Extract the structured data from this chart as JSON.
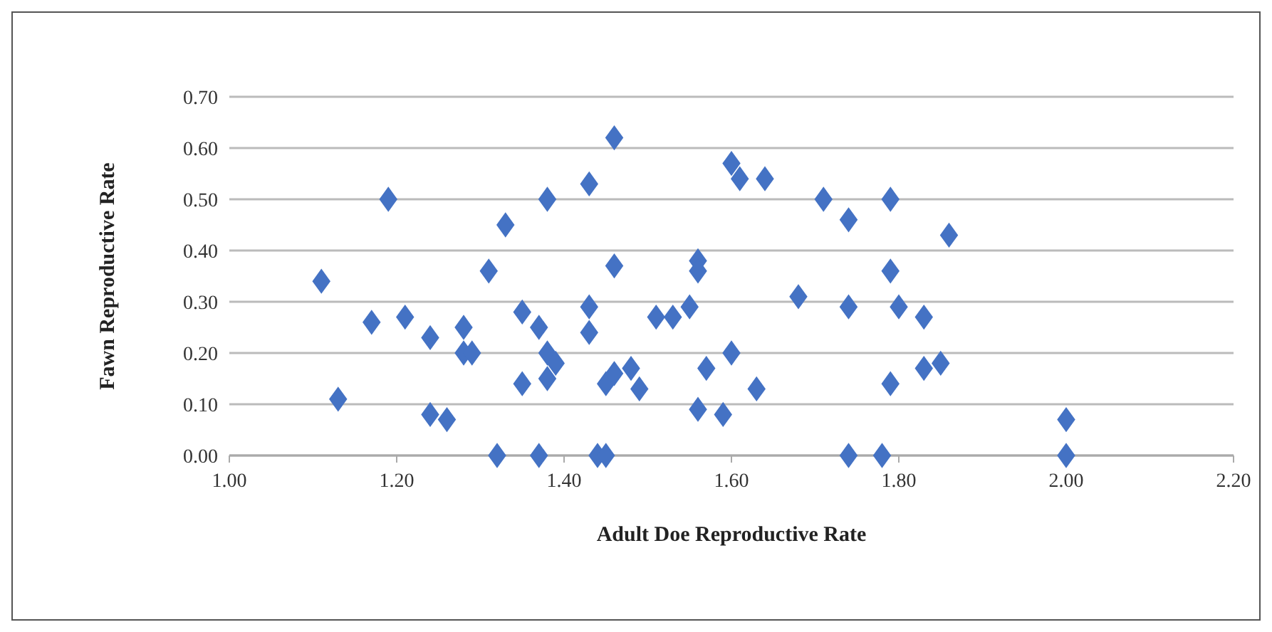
{
  "chart_data": {
    "type": "scatter",
    "xlabel": "Adult Doe Reproductive Rate",
    "ylabel": "Fawn Reproductive Rate",
    "xlim": [
      1.0,
      2.2
    ],
    "xticks": [
      {
        "value": 1.0,
        "label": "1.00"
      },
      {
        "value": 1.2,
        "label": "1.20"
      },
      {
        "value": 1.4,
        "label": "1.40"
      },
      {
        "value": 1.6,
        "label": "1.60"
      },
      {
        "value": 1.8,
        "label": "1.80"
      },
      {
        "value": 2.0,
        "label": "2.00"
      },
      {
        "value": 2.2,
        "label": "2.20"
      }
    ],
    "ylim": [
      0,
      0.7
    ],
    "yticks": [
      {
        "value": 0,
        "label": "0.00"
      },
      {
        "value": 0.1,
        "label": "0.10"
      },
      {
        "value": 0.2,
        "label": "0.20"
      },
      {
        "value": 0.3,
        "label": "0.30"
      },
      {
        "value": 0.4,
        "label": "0.40"
      },
      {
        "value": 0.5,
        "label": "0.50"
      },
      {
        "value": 0.6,
        "label": "0.60"
      },
      {
        "value": 0.7,
        "label": "0.70"
      }
    ],
    "grid": "y",
    "marker": "diamond",
    "series": [
      {
        "color": "#4472c4",
        "x": [
          1.11,
          1.13,
          1.19,
          1.17,
          1.21,
          1.24,
          1.24,
          1.26,
          1.28,
          1.28,
          1.29,
          1.31,
          1.32,
          1.33,
          1.35,
          1.35,
          1.37,
          1.37,
          1.38,
          1.38,
          1.38,
          1.39,
          1.43,
          1.43,
          1.43,
          1.44,
          1.45,
          1.46,
          1.45,
          1.46,
          1.48,
          1.49,
          1.46,
          1.51,
          1.53,
          1.55,
          1.56,
          1.56,
          1.56,
          1.57,
          1.59,
          1.6,
          1.6,
          1.61,
          1.64,
          1.63,
          1.68,
          1.71,
          1.74,
          1.74,
          1.74,
          1.78,
          1.79,
          1.79,
          1.79,
          1.8,
          1.83,
          1.83,
          1.85,
          1.86,
          2.0,
          2.0
        ],
        "values": [
          0.34,
          0.11,
          0.5,
          0.26,
          0.27,
          0.23,
          0.08,
          0.07,
          0.25,
          0.2,
          0.2,
          0.36,
          0.0,
          0.45,
          0.28,
          0.14,
          0.0,
          0.25,
          0.2,
          0.15,
          0.5,
          0.18,
          0.53,
          0.29,
          0.24,
          0.0,
          0.0,
          0.62,
          0.14,
          0.16,
          0.17,
          0.13,
          0.37,
          0.27,
          0.27,
          0.29,
          0.38,
          0.36,
          0.09,
          0.17,
          0.08,
          0.2,
          0.57,
          0.54,
          0.54,
          0.13,
          0.31,
          0.5,
          0.46,
          0.29,
          0.0,
          0.0,
          0.5,
          0.36,
          0.14,
          0.29,
          0.27,
          0.17,
          0.18,
          0.43,
          0.07,
          0.0
        ]
      }
    ]
  }
}
